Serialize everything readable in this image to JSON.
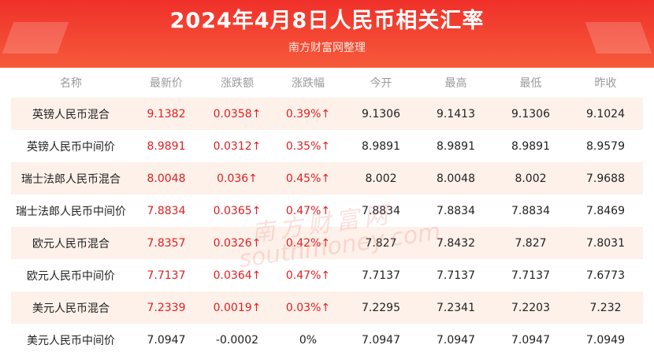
{
  "header": {
    "title": "2024年4月8日人民币相关汇率",
    "subtitle": "南方财富网整理"
  },
  "table": {
    "columns": [
      "名称",
      "最新价",
      "涨跌额",
      "涨跌幅",
      "今开",
      "最高",
      "最低",
      "昨收"
    ],
    "rows": [
      [
        "英镑人民币混合",
        "9.1382",
        "0.0358↑",
        "0.39%↑",
        "9.1306",
        "9.1413",
        "9.1306",
        "9.1024"
      ],
      [
        "英镑人民币中间价",
        "8.9891",
        "0.0312↑",
        "0.35%↑",
        "8.9891",
        "8.9891",
        "8.9891",
        "8.9579"
      ],
      [
        "瑞士法郎人民币混合",
        "8.0048",
        "0.036↑",
        "0.45%↑",
        "8.002",
        "8.0048",
        "8.002",
        "7.9688"
      ],
      [
        "瑞士法郎人民币中间价",
        "7.8834",
        "0.0365↑",
        "0.47%↑",
        "7.8834",
        "7.8834",
        "7.8834",
        "7.8469"
      ],
      [
        "欧元人民币混合",
        "7.8357",
        "0.0326↑",
        "0.42%↑",
        "7.827",
        "7.8432",
        "7.827",
        "7.8031"
      ],
      [
        "欧元人民币中间价",
        "7.7137",
        "0.0364↑",
        "0.47%↑",
        "7.7137",
        "7.7137",
        "7.7137",
        "7.6773"
      ],
      [
        "美元人民币混合",
        "7.2339",
        "0.0019↑",
        "0.03%↑",
        "7.2295",
        "7.2341",
        "7.2203",
        "7.232"
      ],
      [
        "美元人民币中间价",
        "7.0947",
        "-0.0002",
        "0%",
        "7.0947",
        "7.0947",
        "7.0947",
        "7.0949"
      ]
    ]
  },
  "watermark": {
    "cn": "南方财富网",
    "en": "southmoney.com"
  },
  "colors": {
    "banner": "#f0302a",
    "up": "#e02020",
    "stripe": "#fdf1ea"
  }
}
